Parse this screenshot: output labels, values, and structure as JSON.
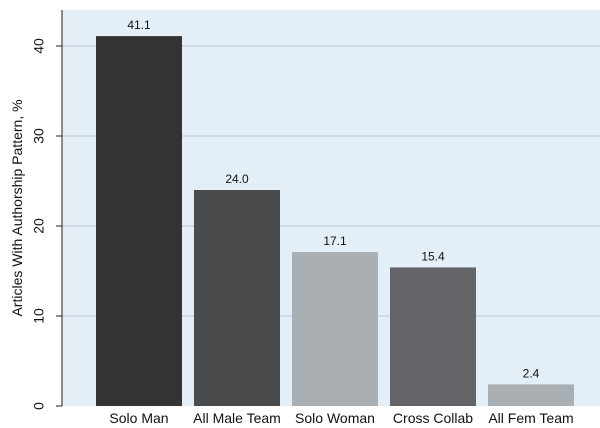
{
  "chart_data": {
    "type": "bar",
    "title": "",
    "xlabel": "",
    "ylabel": "Articles With Authorship Pattern, %",
    "ylim": [
      0,
      44
    ],
    "yticks": [
      0,
      10,
      20,
      30,
      40
    ],
    "grid": true,
    "categories": [
      "Solo Man",
      "All Male Team",
      "Solo Woman",
      "Cross Collab",
      "All Fem Team"
    ],
    "values": [
      41.1,
      24.0,
      17.1,
      15.4,
      2.4
    ],
    "value_labels": [
      "41.1",
      "24.0",
      "17.1",
      "15.4",
      "2.4"
    ],
    "bar_colors": [
      "#333333",
      "#4a4b4d",
      "#a9afb3",
      "#636568",
      "#a9afb3"
    ],
    "plot_background": "#e4eef6",
    "grid_color": "#c3d1de"
  }
}
